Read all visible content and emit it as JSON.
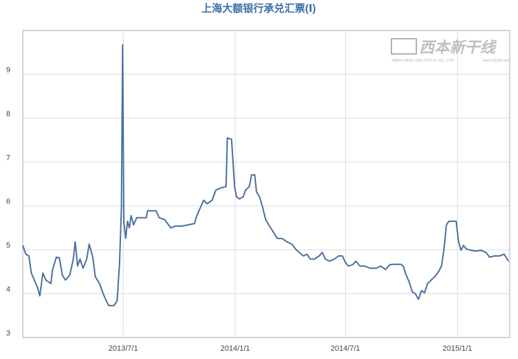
{
  "chart_data": {
    "type": "line",
    "title": "上海大额银行承兑汇票(Ⅰ)",
    "watermark": {
      "brand": "西本新干线",
      "company": "XIBEN NEW LINE STOCK CO., LTD.",
      "url": "www.96369.net"
    },
    "x": [
      "2013/1/17",
      "2013/1/22",
      "2013/1/27",
      "2013/1/31",
      "2013/2/5",
      "2013/2/10",
      "2013/2/14",
      "2013/2/19",
      "2013/2/24",
      "2013/3/4",
      "2013/3/7",
      "2013/3/13",
      "2013/3/18",
      "2013/3/23",
      "2013/3/28",
      "2013/4/4",
      "2013/4/10",
      "2013/4/13",
      "2013/4/17",
      "2013/4/21",
      "2013/4/26",
      "2013/5/2",
      "2013/5/6",
      "2013/5/12",
      "2013/5/16",
      "2013/5/23",
      "2013/5/29",
      "2013/6/3",
      "2013/6/7",
      "2013/6/16",
      "2013/6/21",
      "2013/6/25",
      "2013/6/28",
      "2013/6/30",
      "2013/7/2",
      "2013/7/5",
      "2013/7/8",
      "2013/7/11",
      "2013/7/14",
      "2013/7/18",
      "2013/7/23",
      "2013/8/8",
      "2013/8/10",
      "2013/8/24",
      "2013/8/29",
      "2013/9/7",
      "2013/9/17",
      "2013/9/24",
      "2013/10/5",
      "2013/10/16",
      "2013/10/26",
      "2013/10/30",
      "2013/11/5",
      "2013/11/10",
      "2013/11/16",
      "2013/11/24",
      "2013/11/30",
      "2013/12/8",
      "2013/12/17",
      "2013/12/19",
      "2013/12/26",
      "2013/12/31",
      "2014/1/3",
      "2014/1/8",
      "2014/1/14",
      "2014/1/18",
      "2014/1/24",
      "2014/1/28",
      "2014/2/2",
      "2014/2/5",
      "2014/2/10",
      "2014/2/15",
      "2014/2/20",
      "2014/2/25",
      "2014/3/4",
      "2014/3/11",
      "2014/3/19",
      "2014/3/27",
      "2014/4/4",
      "2014/4/10",
      "2014/4/16",
      "2014/4/23",
      "2014/4/29",
      "2014/5/4",
      "2014/5/11",
      "2014/5/19",
      "2014/5/24",
      "2014/5/29",
      "2014/6/5",
      "2014/6/13",
      "2014/6/20",
      "2014/6/26",
      "2014/7/1",
      "2014/7/6",
      "2014/7/13",
      "2014/7/18",
      "2014/7/25",
      "2014/8/1",
      "2014/8/11",
      "2014/8/21",
      "2014/8/28",
      "2014/9/5",
      "2014/9/12",
      "2014/9/20",
      "2014/9/30",
      "2014/10/4",
      "2014/10/9",
      "2014/10/14",
      "2014/10/19",
      "2014/10/24",
      "2014/10/29",
      "2014/11/3",
      "2014/11/8",
      "2014/11/13",
      "2014/11/19",
      "2014/11/25",
      "2014/12/1",
      "2014/12/6",
      "2014/12/10",
      "2014/12/14",
      "2014/12/18",
      "2014/12/30",
      "2015/1/3",
      "2015/1/7",
      "2015/1/11",
      "2015/1/16",
      "2015/1/23",
      "2015/1/31",
      "2015/2/9",
      "2015/2/17",
      "2015/2/23",
      "2015/3/3",
      "2015/3/11",
      "2015/3/19",
      "2015/3/26"
    ],
    "series": [
      {
        "color": "#4a6f9c",
        "values": [
          5.1,
          4.9,
          4.86,
          4.47,
          4.31,
          4.15,
          3.95,
          4.47,
          4.31,
          4.23,
          4.55,
          4.83,
          4.82,
          4.42,
          4.31,
          4.42,
          4.79,
          5.18,
          4.63,
          4.79,
          4.58,
          4.79,
          5.13,
          4.83,
          4.39,
          4.23,
          4.0,
          3.84,
          3.73,
          3.73,
          3.84,
          4.71,
          5.97,
          9.67,
          5.65,
          5.26,
          5.65,
          5.5,
          5.78,
          5.57,
          5.73,
          5.73,
          5.89,
          5.89,
          5.73,
          5.69,
          5.5,
          5.54,
          5.54,
          5.57,
          5.6,
          5.78,
          5.97,
          6.13,
          6.05,
          6.13,
          6.36,
          6.41,
          6.44,
          7.55,
          7.52,
          6.44,
          6.21,
          6.16,
          6.21,
          6.36,
          6.44,
          6.71,
          6.71,
          6.32,
          6.21,
          5.97,
          5.69,
          5.57,
          5.42,
          5.26,
          5.26,
          5.18,
          5.13,
          5.02,
          4.94,
          4.86,
          4.9,
          4.79,
          4.79,
          4.86,
          4.94,
          4.79,
          4.74,
          4.79,
          4.86,
          4.86,
          4.71,
          4.63,
          4.66,
          4.74,
          4.63,
          4.63,
          4.58,
          4.58,
          4.63,
          4.55,
          4.66,
          4.67,
          4.67,
          4.63,
          4.42,
          4.26,
          4.04,
          4.0,
          3.87,
          4.07,
          4.02,
          4.23,
          4.31,
          4.39,
          4.5,
          4.63,
          5.02,
          5.57,
          5.65,
          5.65,
          5.18,
          4.99,
          5.1,
          5.02,
          4.99,
          4.97,
          4.99,
          4.94,
          4.83,
          4.86,
          4.86,
          4.9,
          4.74
        ]
      }
    ],
    "xlim": [
      "2013/1/17",
      "2015/3/28"
    ],
    "xticks": [
      "2013/7/1",
      "2014/1/1",
      "2014/7/1",
      "2015/1/1"
    ],
    "ylim": [
      3,
      10
    ],
    "yticks": [
      3,
      4,
      5,
      6,
      7,
      8,
      9
    ],
    "grid": true
  }
}
